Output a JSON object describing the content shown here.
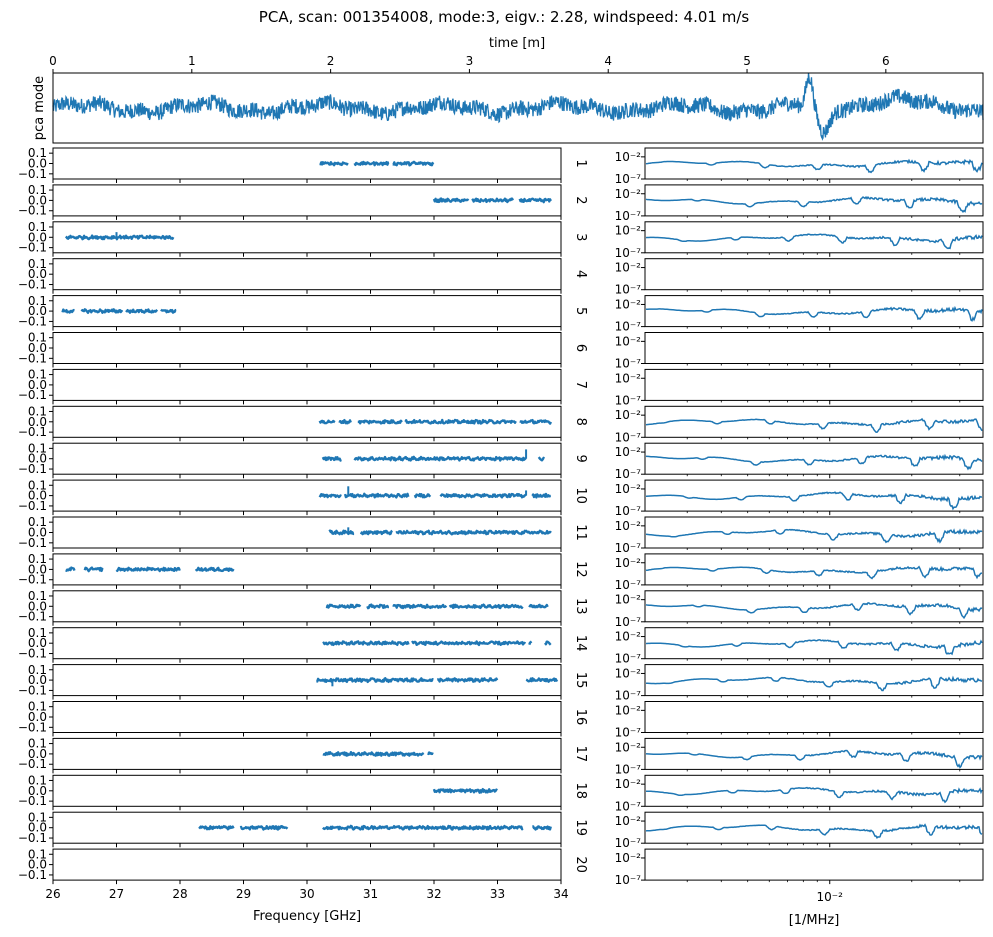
{
  "figure": {
    "title": "PCA, scan: 001354008, mode:3, eigv.: 2.28, windspeed: 4.01 m/s"
  },
  "colors": {
    "series": "#1f77b4",
    "axes": "#000000",
    "background": "#ffffff"
  },
  "chart_data": [
    {
      "id": "time-panel",
      "type": "line",
      "title": "PCA, scan: 001354008, mode:3, eigv.: 2.28, windspeed: 4.01 m/s",
      "xlabel": "time [m]",
      "ylabel": "pca mode",
      "xlim": [
        0,
        6.7
      ],
      "x_ticks": [
        0,
        1,
        2,
        3,
        4,
        5,
        6
      ],
      "x_tick_labels": [
        "0",
        "1",
        "2",
        "3",
        "4",
        "5",
        "6"
      ],
      "ylim": [
        -1,
        1
      ],
      "features": [
        {
          "label": "spike near 5.45 m",
          "x": 5.45,
          "y": 0.85
        },
        {
          "label": "dip near 5.55 m",
          "x": 5.55,
          "y": -0.8
        }
      ]
    },
    {
      "id": "frequency-panels",
      "type": "scatter",
      "xlabel": "Frequency [GHz]",
      "xlim": [
        26,
        34
      ],
      "x_ticks": [
        26,
        27,
        28,
        29,
        30,
        31,
        32,
        33,
        34
      ],
      "x_tick_labels": [
        "26",
        "27",
        "28",
        "29",
        "30",
        "31",
        "32",
        "33",
        "34"
      ],
      "ylim": [
        -0.15,
        0.15
      ],
      "y_ticks": [
        0.1,
        0.0,
        -0.1
      ],
      "y_tick_labels": [
        "0.1",
        "0.0",
        "−0.1"
      ],
      "channels": [
        {
          "label": "1",
          "ranges": [
            [
              30.2,
              30.65
            ],
            [
              30.75,
              31.3
            ],
            [
              31.35,
              32.0
            ]
          ],
          "spikes": []
        },
        {
          "label": "2",
          "ranges": [
            [
              32.0,
              32.55
            ],
            [
              32.6,
              33.25
            ],
            [
              33.35,
              33.85
            ]
          ],
          "spikes": []
        },
        {
          "label": "3",
          "ranges": [
            [
              26.2,
              27.1
            ],
            [
              27.1,
              27.9
            ]
          ],
          "spikes": [
            [
              27.0,
              0.05
            ]
          ]
        },
        {
          "label": "4",
          "ranges": [],
          "spikes": []
        },
        {
          "label": "5",
          "ranges": [
            [
              26.15,
              26.35
            ],
            [
              26.45,
              27.1
            ],
            [
              27.15,
              27.65
            ],
            [
              27.7,
              27.95
            ]
          ],
          "spikes": []
        },
        {
          "label": "6",
          "ranges": [],
          "spikes": []
        },
        {
          "label": "7",
          "ranges": [],
          "spikes": []
        },
        {
          "label": "8",
          "ranges": [
            [
              30.2,
              30.45
            ],
            [
              30.5,
              30.7
            ],
            [
              30.8,
              31.5
            ],
            [
              31.55,
              33.3
            ],
            [
              33.35,
              33.85
            ]
          ],
          "spikes": []
        },
        {
          "label": "9",
          "ranges": [
            [
              30.25,
              30.55
            ],
            [
              30.75,
              33.45
            ],
            [
              33.65,
              33.75
            ]
          ],
          "spikes": [
            [
              33.45,
              0.09
            ]
          ]
        },
        {
          "label": "10",
          "ranges": [
            [
              30.2,
              30.55
            ],
            [
              30.6,
              31.6
            ],
            [
              31.7,
              31.95
            ],
            [
              32.1,
              33.45
            ],
            [
              33.55,
              33.85
            ]
          ],
          "spikes": [
            [
              30.65,
              0.09
            ],
            [
              33.45,
              0.05
            ]
          ]
        },
        {
          "label": "11",
          "ranges": [
            [
              30.35,
              30.75
            ],
            [
              30.85,
              31.35
            ],
            [
              31.4,
              33.85
            ]
          ],
          "spikes": [
            [
              30.65,
              0.05
            ]
          ]
        },
        {
          "label": "12",
          "ranges": [
            [
              26.2,
              26.35
            ],
            [
              26.5,
              26.8
            ],
            [
              27.0,
              28.0
            ],
            [
              28.25,
              28.85
            ]
          ],
          "spikes": []
        },
        {
          "label": "13",
          "ranges": [
            [
              30.3,
              30.85
            ],
            [
              30.95,
              31.3
            ],
            [
              31.35,
              32.2
            ],
            [
              32.25,
              33.4
            ],
            [
              33.5,
              33.8
            ]
          ],
          "spikes": []
        },
        {
          "label": "14",
          "ranges": [
            [
              30.25,
              31.6
            ],
            [
              31.65,
              33.45
            ],
            [
              33.5,
              33.55
            ],
            [
              33.75,
              33.85
            ]
          ],
          "spikes": []
        },
        {
          "label": "15",
          "ranges": [
            [
              30.15,
              32.0
            ],
            [
              32.05,
              33.0
            ],
            [
              33.45,
              33.95
            ]
          ],
          "spikes": [
            [
              30.4,
              -0.06
            ]
          ]
        },
        {
          "label": "16",
          "ranges": [],
          "spikes": []
        },
        {
          "label": "17",
          "ranges": [
            [
              30.25,
              31.85
            ],
            [
              31.9,
              32.0
            ]
          ],
          "spikes": []
        },
        {
          "label": "18",
          "ranges": [
            [
              32.0,
              33.0
            ]
          ],
          "spikes": []
        },
        {
          "label": "19",
          "ranges": [
            [
              28.3,
              28.85
            ],
            [
              28.95,
              29.7
            ],
            [
              30.25,
              33.4
            ],
            [
              33.55,
              33.85
            ]
          ],
          "spikes": []
        },
        {
          "label": "20",
          "ranges": [],
          "spikes": []
        }
      ]
    },
    {
      "id": "spectrum-panels",
      "type": "line",
      "xscale": "log",
      "xlabel": "[1/MHz]",
      "xlim": [
        0.0021,
        0.0365
      ],
      "x_ticks": [
        0.01
      ],
      "x_tick_labels": [
        "10⁻²"
      ],
      "yscale": "log",
      "ylim": [
        1e-07,
        1
      ],
      "y_ticks": [
        0.01,
        1e-07
      ],
      "y_tick_labels": [
        "10⁻²",
        "10⁻⁷"
      ],
      "channels_with_signal": [
        "1",
        "2",
        "3",
        "5",
        "8",
        "9",
        "10",
        "11",
        "12",
        "13",
        "14",
        "15",
        "17",
        "18",
        "19"
      ],
      "empty_channels": [
        "4",
        "6",
        "7",
        "16",
        "20"
      ]
    }
  ]
}
